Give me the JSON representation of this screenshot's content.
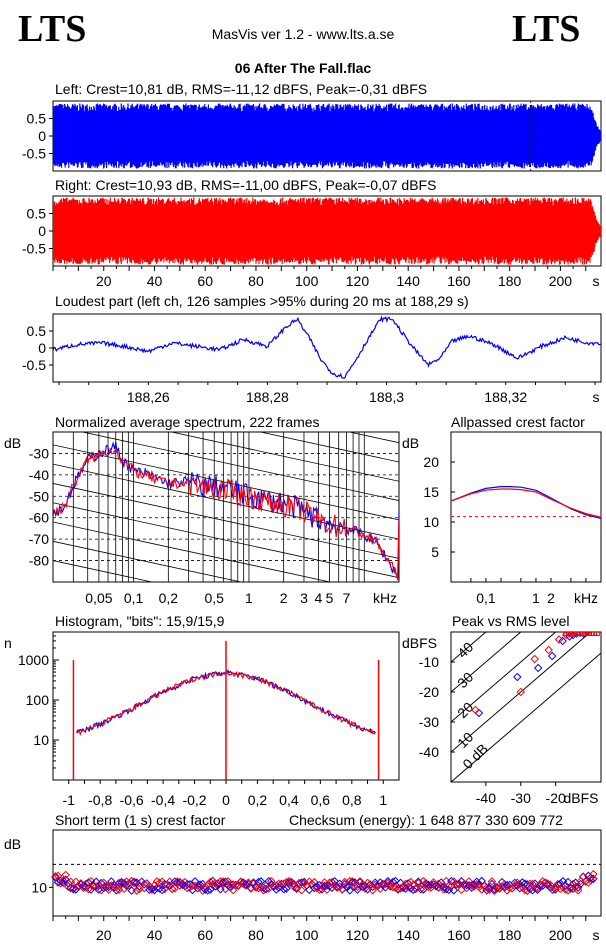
{
  "header": {
    "logo_left": "LTS",
    "logo_right": "LTS",
    "version": "MasVis ver 1.2 - www.lts.a.se",
    "file": "06 After The Fall.flac"
  },
  "colors": {
    "left": "#0000ff",
    "right": "#ff0000",
    "axis": "#000000",
    "dashed": "#000000"
  },
  "chart_data": [
    {
      "id": "left-waveform",
      "type": "area",
      "title": "Left: Crest=10,81 dB, RMS=-11,12 dBFS, Peak=-0,31 dBFS",
      "crest_db": 10.81,
      "rms_dbfs": -11.12,
      "peak_dbfs": -0.31,
      "yticks": [
        "0.5",
        "0",
        "-0.5"
      ],
      "ylim": [
        -1,
        1
      ],
      "xlim": [
        0,
        216
      ],
      "envelope_time_s": [
        0,
        1,
        2,
        210,
        212,
        214,
        216
      ],
      "envelope_amp": [
        0.9,
        0.92,
        0.93,
        0.93,
        0.9,
        0.4,
        0.1
      ],
      "marker_time_s": 188.29
    },
    {
      "id": "right-waveform",
      "type": "area",
      "title": "Right: Crest=10,93 dB, RMS=-11,00 dBFS, Peak=-0,07 dBFS",
      "crest_db": 10.93,
      "rms_dbfs": -11.0,
      "peak_dbfs": -0.07,
      "yticks": [
        "0.5",
        "0",
        "-0.5"
      ],
      "ylim": [
        -1,
        1
      ],
      "xlim": [
        0,
        216
      ],
      "envelope_time_s": [
        0,
        1,
        2,
        210,
        212,
        214,
        216
      ],
      "envelope_amp": [
        0.95,
        0.96,
        0.96,
        0.96,
        0.93,
        0.4,
        0.1
      ],
      "xticks": [
        "20",
        "40",
        "60",
        "80",
        "100",
        "120",
        "140",
        "160",
        "180",
        "200"
      ],
      "xunit": "s"
    },
    {
      "id": "loudest-part",
      "type": "line",
      "title": "Loudest part (left  ch, 126 samples >95% during 20 ms at 188,29 s)",
      "yticks": [
        "0.5",
        "0",
        "-0.5"
      ],
      "ylim": [
        -1,
        1
      ],
      "xticks": [
        "188,26",
        "188,28",
        "188,3",
        "188,32"
      ],
      "xunit": "s",
      "xlim": [
        188.244,
        188.336
      ],
      "x": [
        188.244,
        188.248,
        188.252,
        188.256,
        188.26,
        188.264,
        188.268,
        188.272,
        188.276,
        188.28,
        188.283,
        188.285,
        188.287,
        188.289,
        188.291,
        188.293,
        188.295,
        188.297,
        188.299,
        188.301,
        188.303,
        188.305,
        188.307,
        188.309,
        188.311,
        188.314,
        188.318,
        188.322,
        188.326,
        188.33,
        188.334,
        188.336
      ],
      "y": [
        -0.05,
        0.1,
        0.15,
        0.05,
        -0.1,
        0.15,
        0.05,
        -0.05,
        0.25,
        0.05,
        0.6,
        0.85,
        0.3,
        -0.35,
        -0.75,
        -0.85,
        -0.3,
        0.3,
        0.85,
        0.85,
        0.35,
        -0.1,
        -0.5,
        -0.3,
        0.2,
        0.35,
        0.1,
        -0.3,
        0.05,
        0.3,
        0.15,
        0.15
      ]
    },
    {
      "id": "normalized-spectrum",
      "type": "line",
      "title": "Normalized average spectrum, 222 frames",
      "ylabel": "dB",
      "xunit": "kHz",
      "yticks": [
        "-30",
        "-40",
        "-50",
        "-60",
        "-70",
        "-80"
      ],
      "xticks": [
        "0,05",
        "0,1",
        "0,2",
        "0,5",
        "1",
        "2",
        "3",
        "4",
        "5",
        "7"
      ],
      "ylim": [
        -90,
        -20
      ],
      "freq_khz": [
        0.02,
        0.025,
        0.03,
        0.04,
        0.05,
        0.06,
        0.07,
        0.08,
        0.1,
        0.12,
        0.15,
        0.2,
        0.3,
        0.4,
        0.5,
        0.7,
        1,
        1.5,
        2,
        3,
        4,
        5,
        7,
        10,
        13,
        16,
        20
      ],
      "left_db": [
        -58,
        -55,
        -45,
        -33,
        -30,
        -28,
        -27,
        -33,
        -38,
        -39,
        -41,
        -44,
        -43,
        -45,
        -45,
        -47,
        -50,
        -52,
        -53,
        -57,
        -61,
        -63,
        -65,
        -68,
        -72,
        -80,
        -88
      ],
      "right_db": [
        -58,
        -55,
        -45,
        -33,
        -31,
        -29,
        -28,
        -34,
        -38,
        -40,
        -42,
        -44,
        -44,
        -46,
        -46,
        -48,
        -50,
        -53,
        -54,
        -57,
        -61,
        -63,
        -65,
        -68,
        -72,
        -80,
        -88
      ]
    },
    {
      "id": "allpassed-crest",
      "type": "line",
      "title": "Allpassed crest factor",
      "ylabel": "dB",
      "xunit": "kHz",
      "yticks": [
        "20",
        "15",
        "10",
        "5"
      ],
      "ylim": [
        0,
        25
      ],
      "xticks": [
        "0,1",
        "1",
        "2"
      ],
      "freq_khz": [
        0.02,
        0.05,
        0.1,
        0.2,
        0.3,
        0.5,
        1,
        2,
        5,
        10,
        20
      ],
      "left_db": [
        13.5,
        14.8,
        15.6,
        15.9,
        15.9,
        15.8,
        15.3,
        14,
        12.2,
        11.2,
        10.6
      ],
      "right_db": [
        13.5,
        14.7,
        15.3,
        15.5,
        15.5,
        15.4,
        15.0,
        13.8,
        12.3,
        11.4,
        10.8
      ],
      "reference_db": 10.9
    },
    {
      "id": "histogram",
      "type": "line",
      "title": "Histogram, \"bits\": 15,9/15,9",
      "ylabel": "n",
      "yticks": [
        "1000",
        "100",
        "10"
      ],
      "xticks": [
        "-1",
        "-0,8",
        "-0,6",
        "-0,4",
        "-0,2",
        "0",
        "0,2",
        "0,4",
        "0,6",
        "0,8",
        "1"
      ],
      "xlim": [
        -1.1,
        1.1
      ],
      "x": [
        -0.95,
        -0.9,
        -0.8,
        -0.6,
        -0.4,
        -0.2,
        0,
        0.2,
        0.4,
        0.6,
        0.8,
        0.9,
        0.95
      ],
      "count": [
        15,
        18,
        25,
        60,
        160,
        350,
        500,
        350,
        160,
        60,
        25,
        18,
        15
      ],
      "spikes_x": [
        -0.97,
        0,
        0.97
      ],
      "spikes_count": [
        1000,
        3000,
        1000
      ]
    },
    {
      "id": "peak-vs-rms",
      "type": "scatter",
      "title": "Peak vs RMS level",
      "ylabel": "dBFS",
      "xunit": "dBFS",
      "yticks": [
        "-10",
        "-20",
        "-30",
        "-40"
      ],
      "xticks": [
        "-40",
        "-30",
        "-20"
      ],
      "xlim": [
        -50,
        -7
      ],
      "ylim": [
        -50,
        0
      ],
      "diagonal_labels": [
        "40",
        "30",
        "20",
        "10",
        "0 dB"
      ],
      "left_points": [
        [
          -42,
          -27
        ],
        [
          -31,
          -15
        ],
        [
          -25,
          -12
        ],
        [
          -21,
          -8
        ],
        [
          -18,
          -3
        ],
        [
          -16,
          -1.5
        ],
        [
          -15,
          -1
        ],
        [
          -14,
          -0.5
        ],
        [
          -13,
          -0.3
        ],
        [
          -12,
          -0.5
        ]
      ],
      "right_points": [
        [
          -43,
          -26
        ],
        [
          -30,
          -20
        ],
        [
          -26,
          -9
        ],
        [
          -22,
          -6
        ],
        [
          -19,
          -2.5
        ],
        [
          -17,
          -1
        ],
        [
          -16,
          -0.5
        ],
        [
          -15,
          -0.3
        ],
        [
          -13,
          -0.2
        ],
        [
          -12,
          -0.3
        ],
        [
          -11,
          -0.1
        ]
      ]
    },
    {
      "id": "short-term-crest",
      "type": "scatter",
      "title": "Short term (1 s) crest factor",
      "checksum_label": "Checksum (energy):  1 648 877 330 609 772",
      "ylabel": "dB",
      "yticks": [
        "10"
      ],
      "xticks": [
        "20",
        "40",
        "60",
        "80",
        "100",
        "120",
        "140",
        "160",
        "180",
        "200"
      ],
      "xunit": "s",
      "xlim": [
        0,
        216
      ],
      "ylim": [
        0,
        30
      ],
      "dashed_level_db": 18
    }
  ]
}
